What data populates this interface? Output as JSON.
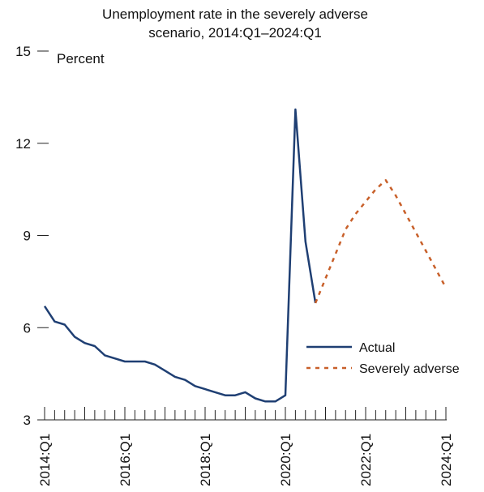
{
  "chart_data": {
    "type": "line",
    "title_lines": [
      "Unemployment rate in the severely adverse",
      "scenario, 2014:Q1–2024:Q1"
    ],
    "ylabel": "Percent",
    "ylim": [
      3,
      15
    ],
    "yticks": [
      3,
      6,
      9,
      12,
      15
    ],
    "xlim": [
      "2014:Q1",
      "2024:Q1"
    ],
    "x_tick_labels": [
      "2014:Q1",
      "2016:Q1",
      "2018:Q1",
      "2020:Q1",
      "2022:Q1",
      "2024:Q1"
    ],
    "grid": false,
    "legend_position": "right",
    "series": [
      {
        "name": "Actual",
        "color": "#1f3f73",
        "style": "solid",
        "points": [
          [
            "2014:Q1",
            6.7
          ],
          [
            "2014:Q2",
            6.2
          ],
          [
            "2014:Q3",
            6.1
          ],
          [
            "2014:Q4",
            5.7
          ],
          [
            "2015:Q1",
            5.5
          ],
          [
            "2015:Q2",
            5.4
          ],
          [
            "2015:Q3",
            5.1
          ],
          [
            "2015:Q4",
            5.0
          ],
          [
            "2016:Q1",
            4.9
          ],
          [
            "2016:Q2",
            4.9
          ],
          [
            "2016:Q3",
            4.9
          ],
          [
            "2016:Q4",
            4.8
          ],
          [
            "2017:Q1",
            4.6
          ],
          [
            "2017:Q2",
            4.4
          ],
          [
            "2017:Q3",
            4.3
          ],
          [
            "2017:Q4",
            4.1
          ],
          [
            "2018:Q1",
            4.0
          ],
          [
            "2018:Q2",
            3.9
          ],
          [
            "2018:Q3",
            3.8
          ],
          [
            "2018:Q4",
            3.8
          ],
          [
            "2019:Q1",
            3.9
          ],
          [
            "2019:Q2",
            3.7
          ],
          [
            "2019:Q3",
            3.6
          ],
          [
            "2019:Q4",
            3.6
          ],
          [
            "2020:Q1",
            3.8
          ],
          [
            "2020:Q2",
            13.1
          ],
          [
            "2020:Q3",
            8.8
          ],
          [
            "2020:Q4",
            6.8
          ]
        ]
      },
      {
        "name": "Severely adverse",
        "color": "#c8602a",
        "style": "dashed",
        "points": [
          [
            "2020:Q4",
            6.8
          ],
          [
            "2021:Q1",
            7.6
          ],
          [
            "2021:Q2",
            8.4
          ],
          [
            "2021:Q3",
            9.2
          ],
          [
            "2021:Q4",
            9.7
          ],
          [
            "2022:Q1",
            10.1
          ],
          [
            "2022:Q2",
            10.5
          ],
          [
            "2022:Q3",
            10.8
          ],
          [
            "2022:Q4",
            10.3
          ],
          [
            "2023:Q1",
            9.7
          ],
          [
            "2023:Q2",
            9.1
          ],
          [
            "2023:Q3",
            8.5
          ],
          [
            "2023:Q4",
            7.9
          ],
          [
            "2024:Q1",
            7.3
          ]
        ]
      }
    ]
  }
}
